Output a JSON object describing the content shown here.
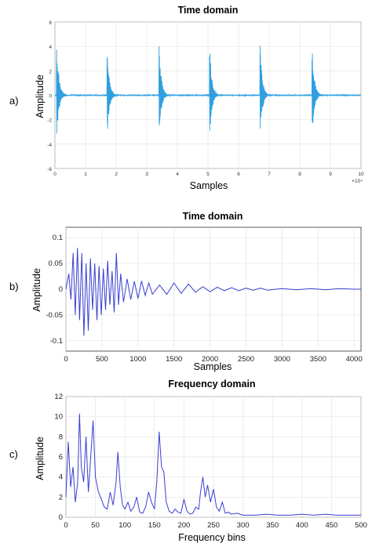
{
  "colors": {
    "panel_a_line": "#2f9fe0",
    "panel_bc_line": "#3a3fd1",
    "grid": "#e3e3e3",
    "axis": "#333333"
  },
  "chart_data": [
    {
      "panel_label": "a)",
      "type": "line",
      "title": "Time domain",
      "xlabel": "Samples",
      "ylabel": "Amplitude",
      "xlim": [
        0,
        100000
      ],
      "ylim": [
        -6,
        6
      ],
      "x_ticks": [
        0,
        10000,
        20000,
        30000,
        40000,
        50000,
        60000,
        70000,
        80000,
        90000,
        100000
      ],
      "x_tick_labels": [
        "0",
        "1",
        "2",
        "3",
        "4",
        "5",
        "6",
        "7",
        "8",
        "9",
        "10"
      ],
      "x_multiplier_label": "×10⁴",
      "y_ticks": [
        -6,
        -4,
        -2,
        0,
        2,
        4,
        6
      ],
      "y_tick_labels": [
        "-6",
        "-4",
        "-2",
        "0",
        "2",
        "4",
        "6"
      ],
      "grid": true,
      "series": [
        {
          "impulse_positions": [
            500,
            17000,
            34000,
            50500,
            67000,
            84000
          ],
          "peak_high": [
            5.2,
            4.6,
            4.6,
            4.6,
            4.6,
            4.6
          ],
          "peak_low": [
            -4.0,
            -3.8,
            -3.8,
            -3.8,
            -3.8,
            -3.8
          ],
          "decay_samples": 4500
        }
      ]
    },
    {
      "panel_label": "b)",
      "type": "line",
      "title": "Time domain",
      "xlabel": "Samples",
      "ylabel": "Amplitude",
      "xlim": [
        0,
        4096
      ],
      "ylim": [
        -0.12,
        0.12
      ],
      "x_ticks": [
        0,
        500,
        1000,
        1500,
        2000,
        2500,
        3000,
        3500,
        4000
      ],
      "x_tick_labels": [
        "0",
        "500",
        "1000",
        "1500",
        "2000",
        "2500",
        "3000",
        "3500",
        "4000"
      ],
      "y_ticks": [
        -0.1,
        -0.05,
        0,
        0.05,
        0.1
      ],
      "y_tick_labels": [
        "-0.1",
        "-0.05",
        "0",
        "0.05",
        "0.1"
      ],
      "grid": true,
      "series": [
        {
          "x": [
            0,
            40,
            70,
            100,
            130,
            160,
            190,
            220,
            250,
            280,
            310,
            340,
            370,
            400,
            430,
            460,
            490,
            520,
            550,
            580,
            610,
            640,
            670,
            700,
            730,
            760,
            800,
            850,
            900,
            950,
            1000,
            1050,
            1100,
            1150,
            1200,
            1300,
            1400,
            1500,
            1600,
            1700,
            1800,
            1900,
            2000,
            2100,
            2200,
            2300,
            2400,
            2500,
            2600,
            2700,
            2800,
            3000,
            3200,
            3400,
            3600,
            3800,
            4000,
            4096
          ],
          "y": [
            0,
            0.03,
            -0.02,
            0.07,
            -0.05,
            0.08,
            -0.06,
            0.07,
            -0.09,
            0.05,
            -0.08,
            0.06,
            -0.04,
            0.05,
            -0.06,
            0.045,
            -0.05,
            0.04,
            -0.04,
            0.055,
            -0.03,
            0.035,
            -0.045,
            0.07,
            -0.03,
            0.03,
            -0.025,
            0.02,
            -0.02,
            0.015,
            -0.018,
            0.016,
            -0.012,
            0.012,
            -0.01,
            0.008,
            -0.01,
            0.012,
            -0.008,
            0.01,
            -0.006,
            0.005,
            -0.005,
            0.004,
            -0.003,
            0.003,
            -0.003,
            0.002,
            -0.002,
            0.002,
            -0.002,
            0.001,
            -0.001,
            0.001,
            -0.001,
            0.001,
            0,
            0
          ]
        }
      ]
    },
    {
      "panel_label": "c)",
      "type": "line",
      "title": "Frequency domain",
      "xlabel": "Frequency bins",
      "ylabel": "Amplitude",
      "xlim": [
        0,
        500
      ],
      "ylim": [
        0,
        12
      ],
      "x_ticks": [
        0,
        50,
        100,
        150,
        200,
        250,
        300,
        350,
        400,
        450,
        500
      ],
      "x_tick_labels": [
        "0",
        "50",
        "100",
        "150",
        "200",
        "250",
        "300",
        "350",
        "400",
        "450",
        "500"
      ],
      "y_ticks": [
        0,
        2,
        4,
        6,
        8,
        10,
        12
      ],
      "y_tick_labels": [
        "0",
        "2",
        "4",
        "6",
        "8",
        "10",
        "12"
      ],
      "grid": true,
      "series": [
        {
          "x": [
            0,
            4,
            8,
            12,
            16,
            20,
            23,
            26,
            30,
            34,
            38,
            42,
            46,
            50,
            55,
            60,
            65,
            70,
            75,
            80,
            85,
            88,
            92,
            96,
            100,
            105,
            110,
            115,
            120,
            125,
            130,
            135,
            140,
            145,
            150,
            154,
            158,
            162,
            166,
            170,
            175,
            180,
            185,
            190,
            195,
            200,
            205,
            210,
            215,
            220,
            225,
            228,
            232,
            236,
            240,
            245,
            250,
            255,
            260,
            265,
            270,
            275,
            280,
            290,
            300,
            320,
            340,
            360,
            380,
            400,
            420,
            440,
            460,
            480,
            500
          ],
          "y": [
            2,
            7.5,
            3,
            5,
            1.5,
            3.5,
            10.3,
            5,
            3.5,
            8,
            2.5,
            6,
            9.6,
            4,
            2.5,
            1.8,
            1.0,
            0.8,
            2.5,
            1.2,
            3.5,
            6.5,
            3,
            1.2,
            0.8,
            1.5,
            0.6,
            1.0,
            2.0,
            0.5,
            0.4,
            1.0,
            2.5,
            1.5,
            0.8,
            3.5,
            8.5,
            5.0,
            4.5,
            1.5,
            0.6,
            0.4,
            0.8,
            0.5,
            0.4,
            1.8,
            0.6,
            0.3,
            0.4,
            1.0,
            0.8,
            2.5,
            4.0,
            2.0,
            3.2,
            1.5,
            2.8,
            1.0,
            0.6,
            1.5,
            0.4,
            0.5,
            0.3,
            0.4,
            0.2,
            0.2,
            0.3,
            0.2,
            0.2,
            0.3,
            0.2,
            0.3,
            0.2,
            0.2,
            0.2
          ]
        }
      ]
    }
  ]
}
